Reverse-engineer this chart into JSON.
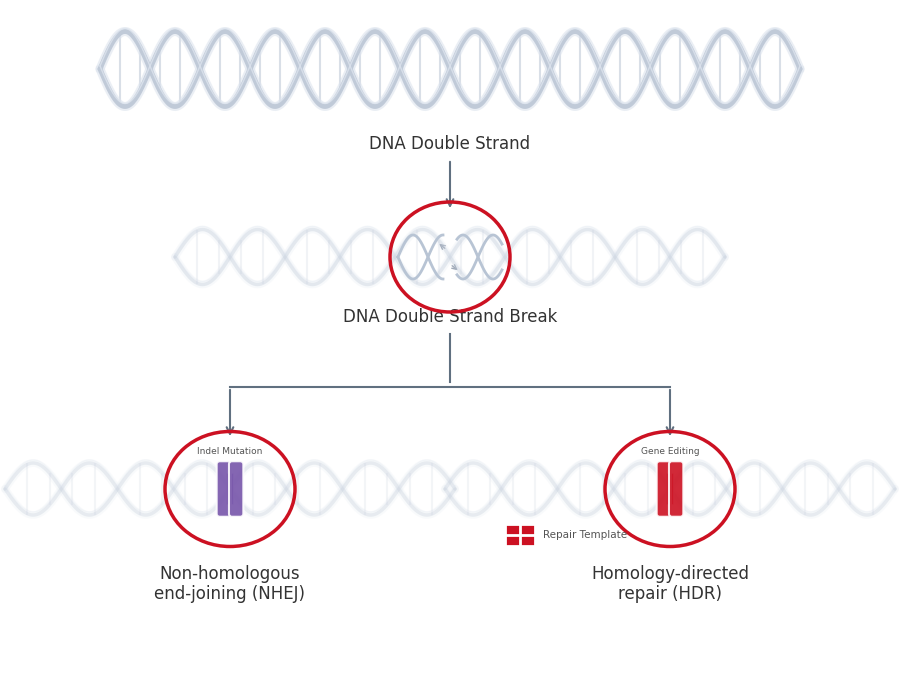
{
  "bg_color": "#ffffff",
  "arrow_color": "#607080",
  "red_color": "#cc1122",
  "purple_color": "#7755aa",
  "dna_strand_color": "#c8d0dc",
  "dna_rung_color": "#b0b8c8",
  "text_color": "#333333",
  "label_color": "#555555",
  "title": "DNA Double Strand",
  "break_title": "DNA Double Strand Break",
  "nhej_title": "Non-homologous\nend-joining (NHEJ)",
  "hdr_title": "Homology-directed\nrepair (HDR)",
  "indel_label": "Indel Mutation",
  "gene_editing_label": "Gene Editing",
  "repair_template_label": "Repair Template"
}
